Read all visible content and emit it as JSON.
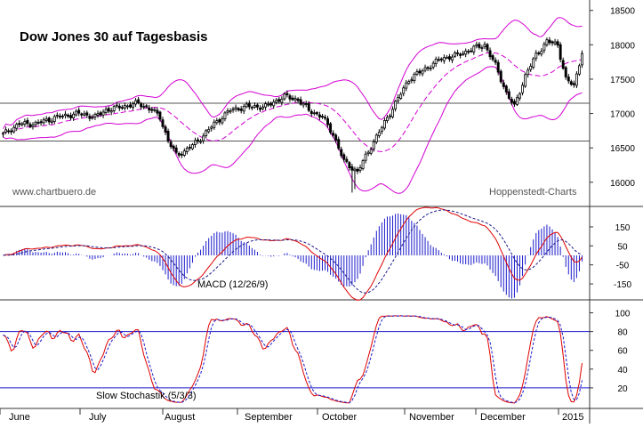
{
  "chart_data": {
    "type": "candlestick",
    "title": "Dow Jones 30 auf Tagesbasis",
    "watermark_left": "www.chartbuero.de",
    "watermark_right": "Hoppenstedt-Charts",
    "x_labels": [
      "June",
      "July",
      "August",
      "September",
      "October",
      "November",
      "December",
      "2015"
    ],
    "price_panel": {
      "ylim": [
        15700,
        18600
      ],
      "yticks": [
        16000,
        16500,
        17000,
        17500,
        18000,
        18500
      ],
      "horizontal_lines": [
        16600,
        17150
      ],
      "series": [
        "price",
        "upper-bollinger",
        "lower-bollinger",
        "moving-average"
      ]
    },
    "macd_panel": {
      "label": "MACD (12/26/9)",
      "ylim": [
        -220,
        220
      ],
      "yticks": [
        150,
        50,
        -50,
        -150
      ],
      "series": [
        "macd",
        "signal",
        "histogram"
      ]
    },
    "stochastic_panel": {
      "label": "Slow Stochastik (5/3/3)",
      "ylim": [
        0,
        110
      ],
      "yticks": [
        100,
        80,
        60,
        40,
        20
      ],
      "horizontal_lines": [
        20,
        80
      ],
      "series": [
        "k",
        "d"
      ]
    },
    "colors": {
      "candle_body": "#000000",
      "bollinger": "#d400d4",
      "macd_line": "#e00000",
      "signal_line": "#1a1a8c",
      "histogram": "#1a1acc",
      "stoch_k": "#e00000",
      "stoch_d": "#1a1acc",
      "level_line": "#1a1acc",
      "grid": "#777777"
    }
  }
}
